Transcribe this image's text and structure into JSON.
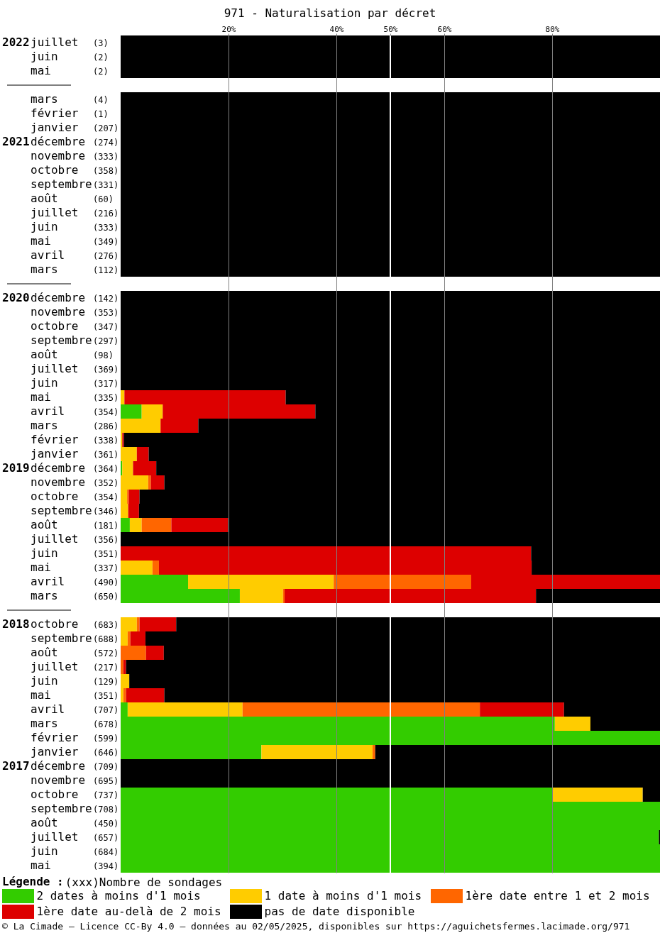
{
  "chart_data": {
    "type": "bar",
    "orientation": "horizontal",
    "stacked": true,
    "title": "971 - Naturalisation par décret",
    "legend_title": "Légende :",
    "annotations": [
      "(xxx)Nombre de sondages",
      "© La Cimade — Licence CC-By 4.0 — données au 02/05/2025, disponibles sur https://aguichetsfermes.lacimade.org/971"
    ],
    "categories": [
      "2022juillet (3)",
      "juin (2)",
      "mai (2)",
      null,
      "mars (4)",
      "février (1)",
      "janvier (207)",
      "2021décembre (274)",
      "novembre (333)",
      "octobre (358)",
      "septembre(331)",
      "août (60)",
      "juillet (216)",
      "juin (333)",
      "mai (349)",
      "avril (276)",
      "mars (112)",
      null,
      "2020décembre (142)",
      "novembre (353)",
      "octobre (347)",
      "septembre(297)",
      "août (98)",
      "juillet (369)",
      "juin (317)",
      "mai (335)",
      "avril (354)",
      "mars (286)",
      "février (338)",
      "janvier (361)",
      "2019décembre (364)",
      "novembre (352)",
      "octobre (354)",
      "septembre(346)",
      "août (181)",
      "juillet (356)",
      "juin (351)",
      "mai (337)",
      "avril (490)",
      "mars (650)",
      null,
      "2018octobre (683)",
      "septembre(688)",
      "août (572)",
      "juillet (217)",
      "juin (129)",
      "mai (351)",
      "avril (707)",
      "mars (678)",
      "février (599)",
      "janvier (646)",
      "2017décembre (709)",
      "novembre (695)",
      "octobre (737)",
      "septembre(708)",
      "août (450)",
      "juillet (657)",
      "juin (684)",
      "mai (394)"
    ],
    "series": [
      {
        "name": "2 dates à moins d'1 mois",
        "color": "#33cc00",
        "values": [
          0,
          0,
          0,
          null,
          0,
          0,
          0,
          0,
          0,
          0,
          0,
          0,
          0,
          0,
          0,
          0,
          0,
          null,
          0,
          0,
          0,
          0,
          0,
          0,
          0,
          0,
          3.9,
          0,
          0,
          0,
          0.3,
          0,
          0,
          0,
          1.7,
          0,
          0,
          0,
          12.5,
          22.1,
          null,
          0,
          0,
          0,
          0,
          0,
          0,
          1.3,
          80.5,
          100,
          26.1,
          0,
          0,
          80.1,
          100,
          100,
          99.8,
          100,
          100
        ]
      },
      {
        "name": "1 date à moins d'1 mois",
        "color": "#ffcc00",
        "values": [
          0,
          0,
          0,
          null,
          0,
          0,
          0,
          0,
          0,
          0,
          0,
          0,
          0,
          0,
          0,
          0,
          0,
          null,
          0,
          0,
          0,
          0,
          0,
          0,
          0,
          0.7,
          3.9,
          7.4,
          0.3,
          3.0,
          2.0,
          5.1,
          1.2,
          1.4,
          2.2,
          0,
          0,
          5.9,
          27.0,
          8.0,
          null,
          3.0,
          1.3,
          0,
          0,
          1.6,
          0.5,
          21.3,
          6.6,
          0,
          20.6,
          0,
          0,
          16.7,
          0,
          0,
          0,
          0,
          0
        ]
      },
      {
        "name": "1ère date entre 1 et 2 mois",
        "color": "#ff6600",
        "values": [
          0,
          0,
          0,
          null,
          0,
          0,
          0,
          0,
          0,
          0,
          0,
          0,
          0,
          0,
          0,
          0,
          0,
          null,
          0,
          0,
          0,
          0,
          0,
          0,
          0,
          0,
          0,
          0,
          0,
          0,
          0,
          0.5,
          0.3,
          0,
          5.5,
          0,
          0,
          1.2,
          25.5,
          0.3,
          null,
          0.5,
          0.5,
          4.7,
          0.5,
          0,
          0.5,
          44.0,
          0,
          0,
          0.5,
          0,
          0,
          0,
          0,
          0,
          0,
          0,
          0
        ]
      },
      {
        "name": "1ère date au-delà de 2 mois",
        "color": "#dd0000",
        "values": [
          0,
          0,
          0,
          null,
          0,
          0,
          0,
          0,
          0,
          0,
          0,
          0,
          0,
          0,
          0,
          0,
          0,
          null,
          0,
          0,
          0,
          0,
          0,
          0,
          0,
          29.9,
          28.3,
          7.0,
          0.3,
          2.2,
          4.3,
          2.5,
          2.0,
          2.0,
          10.5,
          0,
          76.1,
          69.1,
          35.0,
          46.6,
          null,
          6.8,
          2.8,
          3.3,
          0.5,
          0,
          7.1,
          15.6,
          0,
          0,
          0,
          0,
          0,
          0,
          0,
          0,
          0,
          0,
          0
        ]
      },
      {
        "name": "pas de date disponible",
        "color": "#000000",
        "values": [
          100,
          100,
          100,
          null,
          100,
          100,
          100,
          100,
          100,
          100,
          100,
          100,
          100,
          100,
          100,
          100,
          100,
          null,
          100,
          100,
          100,
          100,
          100,
          100,
          100,
          69.4,
          63.9,
          85.6,
          99.4,
          94.8,
          93.4,
          91.9,
          96.5,
          96.6,
          80.1,
          100,
          23.9,
          23.8,
          0,
          23.0,
          null,
          89.7,
          95.4,
          92.0,
          99.0,
          98.4,
          91.9,
          17.8,
          12.9,
          0,
          52.8,
          100,
          100,
          3.2,
          0,
          0,
          0.2,
          0,
          0
        ]
      }
    ],
    "xlim": [
      0,
      100
    ],
    "xticks": [
      {
        "value": 20,
        "label": "20%"
      },
      {
        "value": 40,
        "label": "40%"
      },
      {
        "value": 50,
        "label": "50%"
      },
      {
        "value": 60,
        "label": "60%"
      },
      {
        "value": 80,
        "label": "80%"
      }
    ],
    "ref_lines": [
      {
        "axis": "x",
        "value": 50,
        "color": "#ffffff"
      }
    ],
    "grid": "x",
    "legend": "bottom"
  }
}
